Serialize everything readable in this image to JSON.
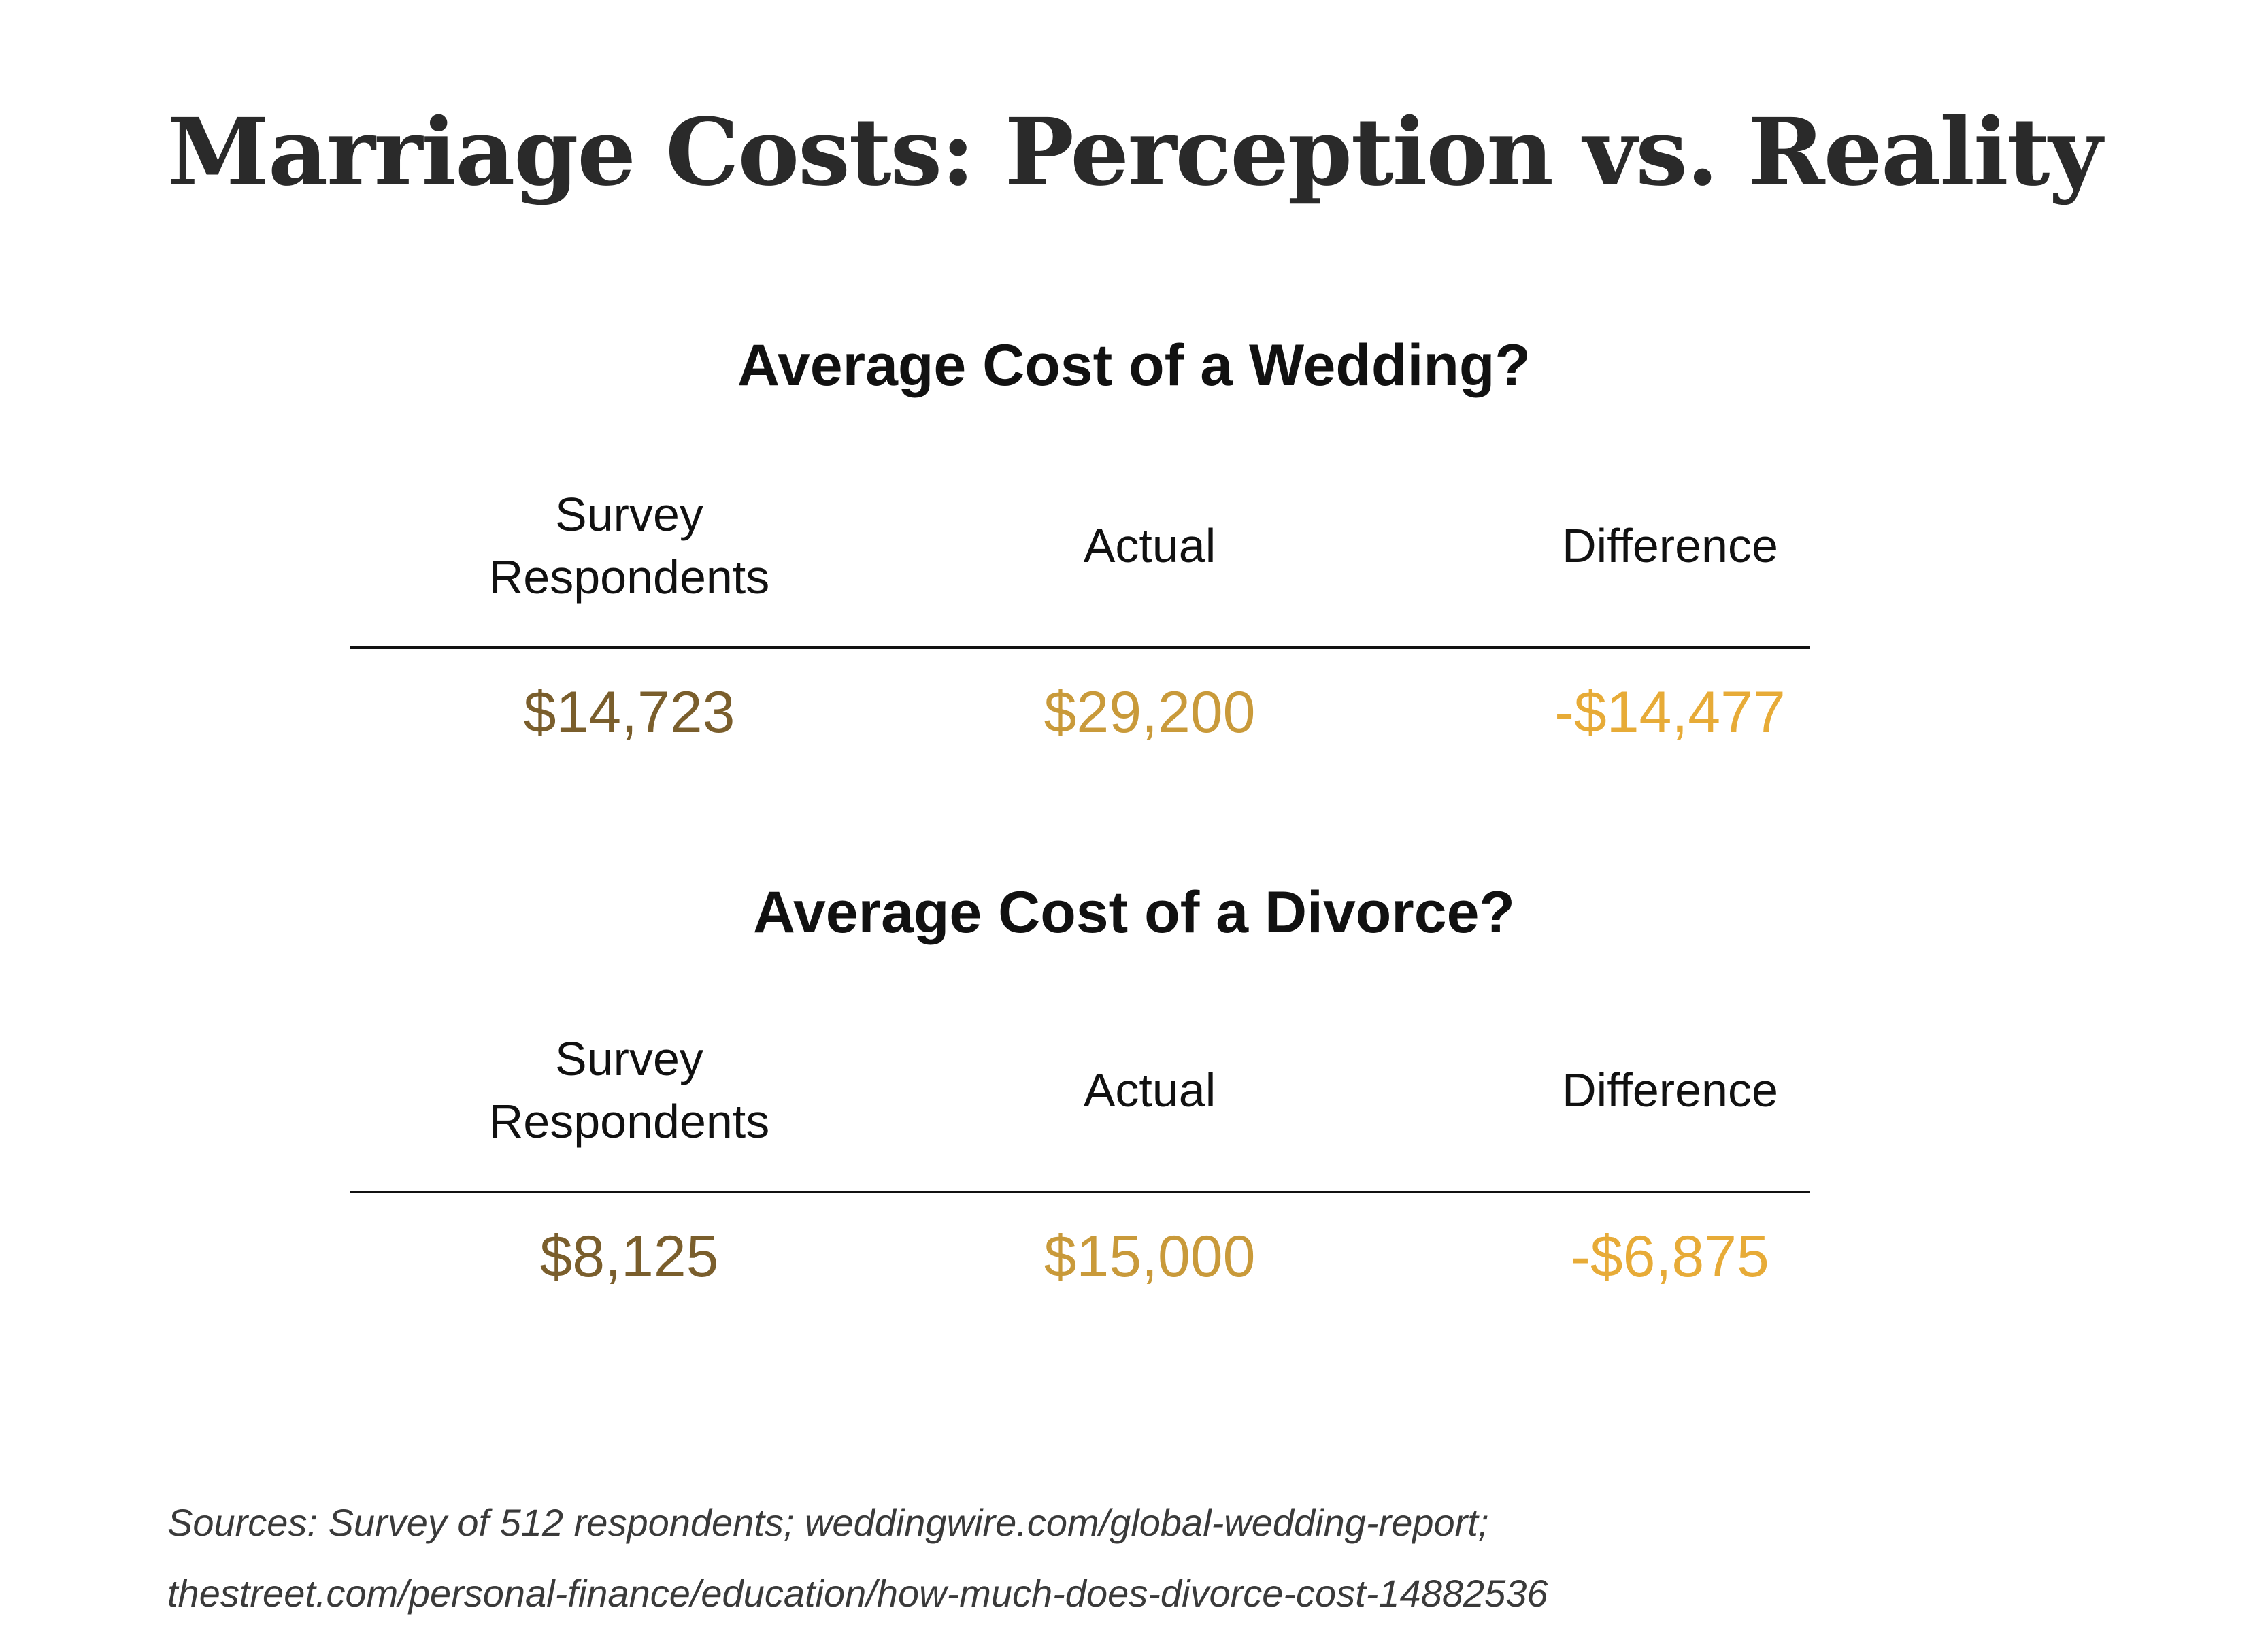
{
  "title": "Marriage Costs: Perception vs. Reality",
  "colors": {
    "survey": "#7a5e2c",
    "actual": "#c99a3a",
    "difference": "#e7ab37"
  },
  "sections": [
    {
      "heading": "Average Cost of a Wedding?",
      "columns": {
        "survey_line1": "Survey",
        "survey_line2": "Respondents",
        "actual": "Actual",
        "difference": "Difference"
      },
      "values": {
        "survey": "$14,723",
        "actual": "$29,200",
        "difference": "-$14,477"
      }
    },
    {
      "heading": "Average Cost of a Divorce?",
      "columns": {
        "survey_line1": "Survey",
        "survey_line2": "Respondents",
        "actual": "Actual",
        "difference": "Difference"
      },
      "values": {
        "survey": "$8,125",
        "actual": "$15,000",
        "difference": "-$6,875"
      }
    }
  ],
  "sources": {
    "line1": "Sources: Survey of 512 respondents; weddingwire.com/global-wedding-report;",
    "line2": "thestreet.com/personal-finance/education/how-much-does-divorce-cost-14882536"
  }
}
